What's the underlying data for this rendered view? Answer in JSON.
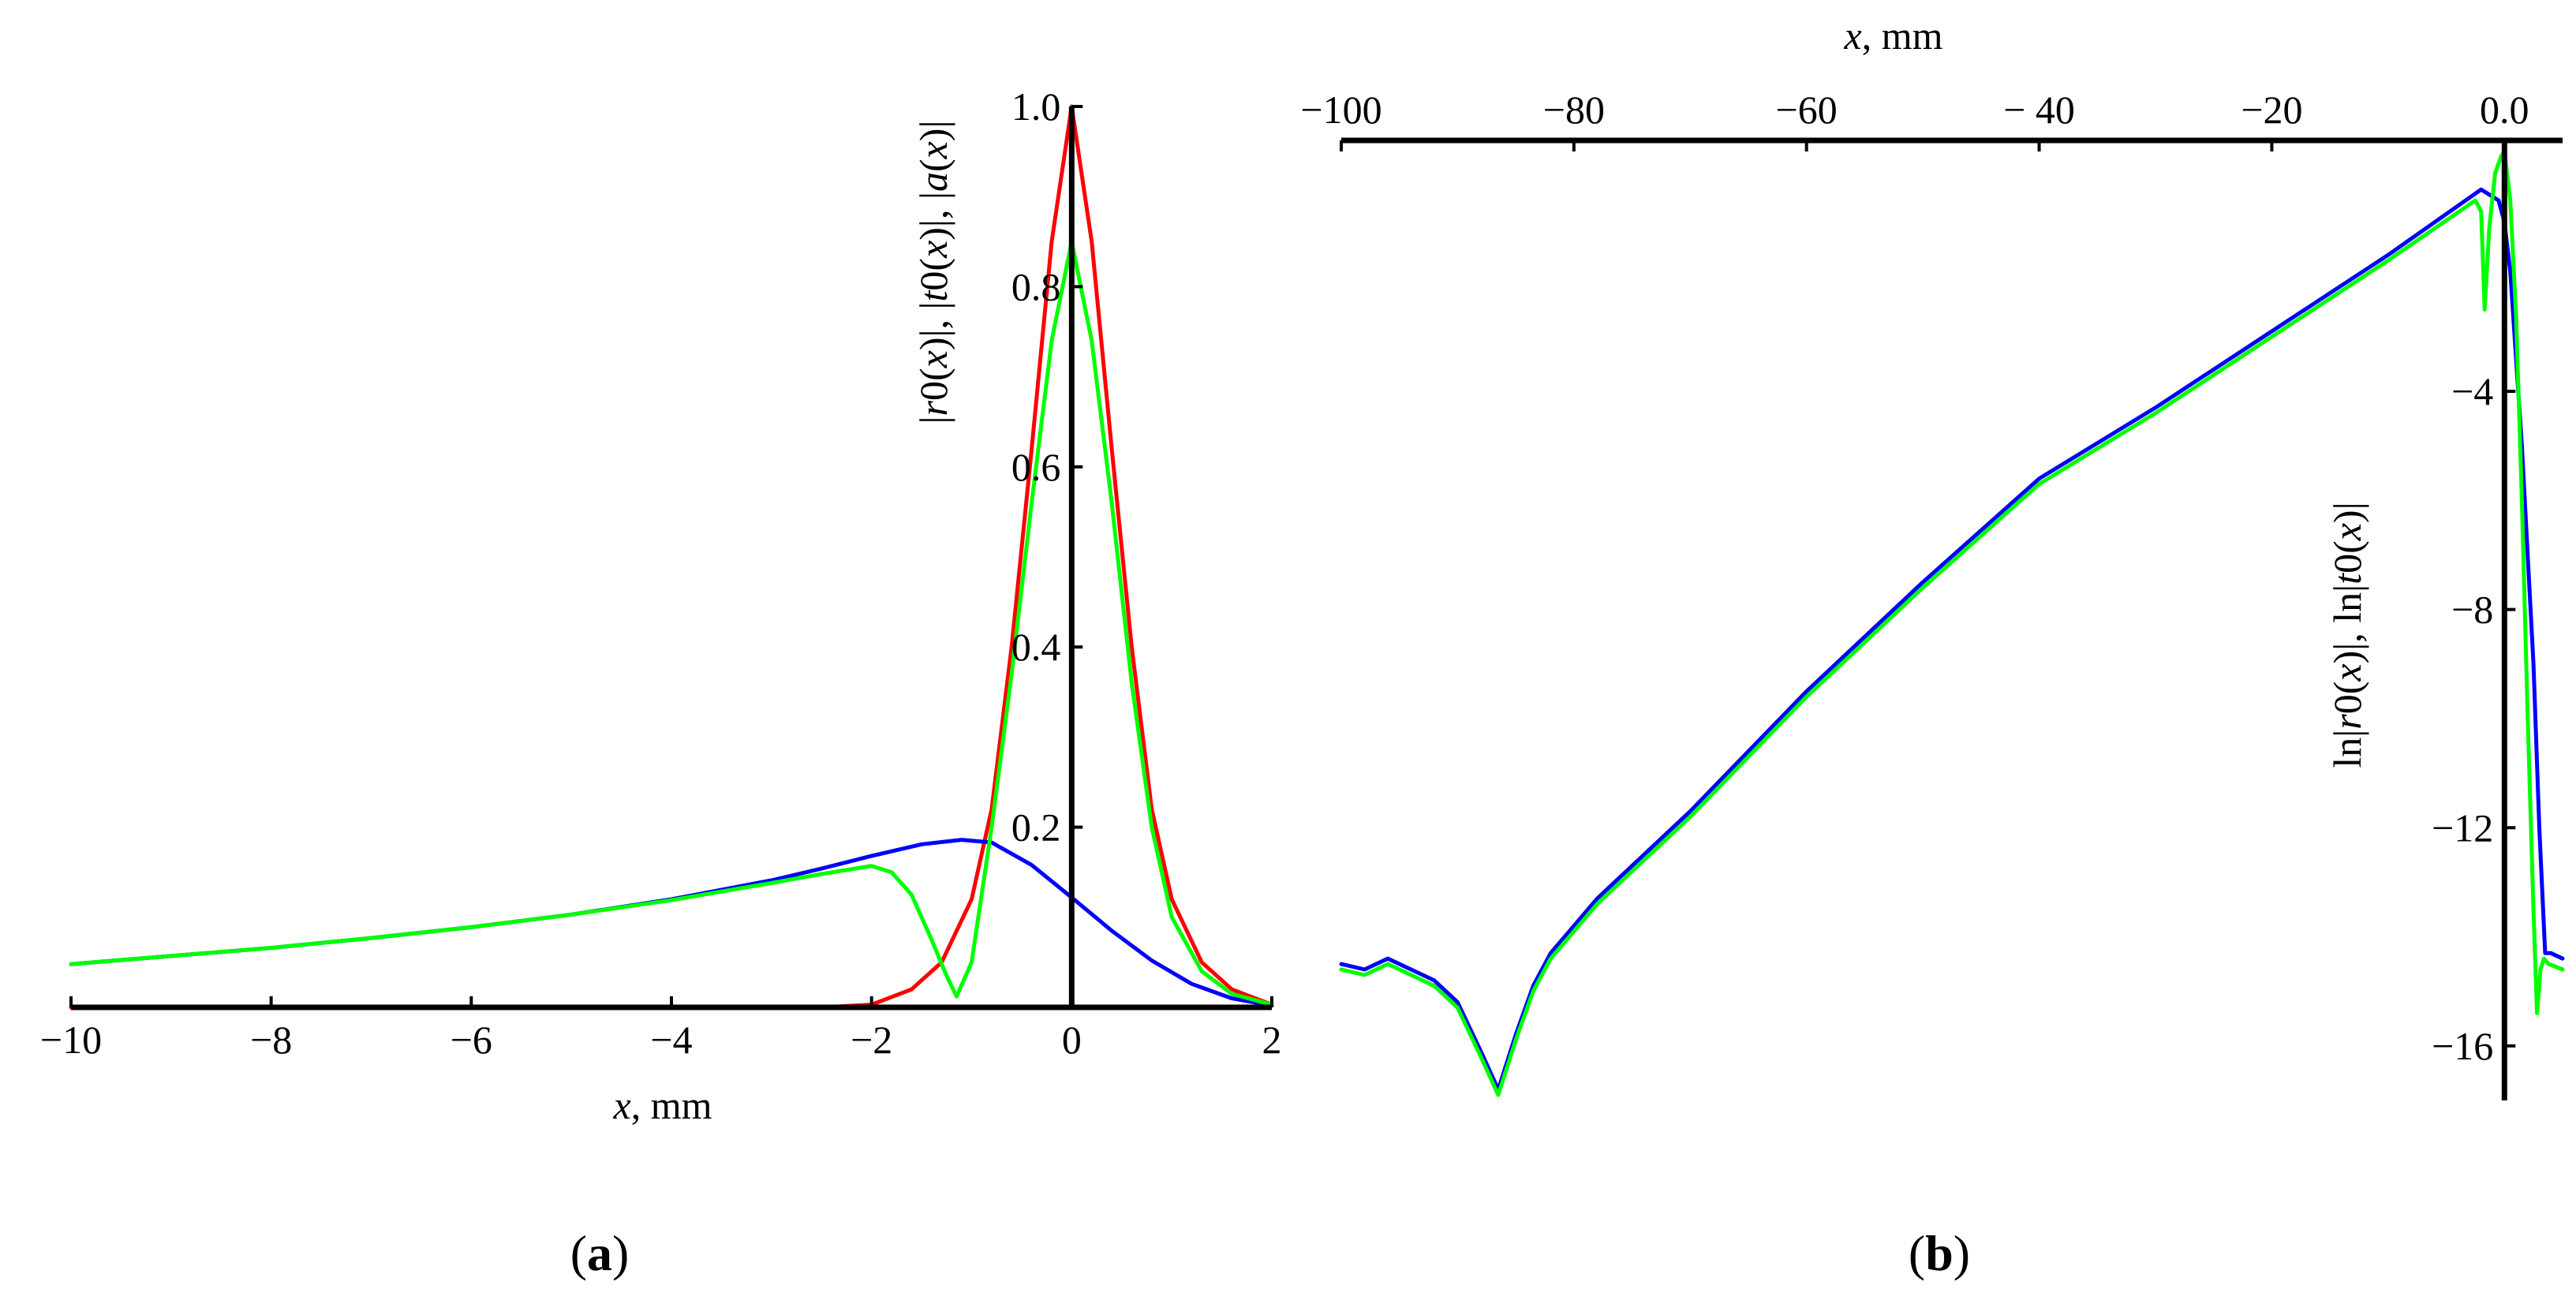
{
  "chart_data": [
    {
      "id": "a",
      "type": "line",
      "panel_label": "(a)",
      "panel_letter": "a",
      "title": "",
      "xlabel": "x, mm",
      "xlabel_var": "x",
      "xlabel_unit": ", mm",
      "ylabel": "|r0(x)|, |t0(x)|, |a(x)|",
      "ylabel_parts": [
        "|",
        "r",
        "0",
        "(",
        "x",
        ")|, |",
        "t",
        "0",
        "(",
        "x",
        ")|, |",
        "a",
        "(",
        "x",
        ")|"
      ],
      "xlim": [
        -10,
        2
      ],
      "ylim": [
        0,
        1.0
      ],
      "xticks": [
        -10,
        -8,
        -6,
        -4,
        -2,
        0,
        2
      ],
      "xtick_labels": [
        "−10",
        "−8",
        "−6",
        "−4",
        "−2",
        "0",
        "2"
      ],
      "yticks": [
        0.2,
        0.4,
        0.6,
        0.8,
        1.0
      ],
      "ytick_labels": [
        "0.2",
        "0.4",
        "0.6",
        "0.8",
        "1.0"
      ],
      "series": [
        {
          "name": "|a(x)|",
          "color": "#ff0000",
          "x": [
            -10,
            -2.5,
            -2,
            -1.6,
            -1.3,
            -1.0,
            -0.8,
            -0.6,
            -0.4,
            -0.2,
            0,
            0.2,
            0.4,
            0.6,
            0.8,
            1.0,
            1.3,
            1.6,
            2.0
          ],
          "y": [
            0,
            0,
            0.003,
            0.02,
            0.05,
            0.12,
            0.22,
            0.4,
            0.62,
            0.85,
            1.0,
            0.85,
            0.62,
            0.4,
            0.22,
            0.12,
            0.05,
            0.02,
            0.003
          ]
        },
        {
          "name": "|r0(x)|",
          "color": "#0000ff",
          "x": [
            -10,
            -9,
            -8,
            -7,
            -6,
            -5,
            -4,
            -3,
            -2.5,
            -2,
            -1.5,
            -1.1,
            -0.8,
            -0.4,
            0,
            0.4,
            0.8,
            1.2,
            1.6,
            2.0
          ],
          "y": [
            0.048,
            0.057,
            0.066,
            0.077,
            0.089,
            0.103,
            0.12,
            0.141,
            0.154,
            0.168,
            0.181,
            0.186,
            0.183,
            0.158,
            0.122,
            0.085,
            0.052,
            0.026,
            0.01,
            0.002
          ]
        },
        {
          "name": "|t0(x)|",
          "color": "#00ff00",
          "x": [
            -10,
            -9,
            -8,
            -7,
            -6,
            -5,
            -4,
            -3,
            -2.5,
            -2.0,
            -1.8,
            -1.6,
            -1.4,
            -1.25,
            -1.15,
            -1.0,
            -0.8,
            -0.6,
            -0.4,
            -0.2,
            0,
            0.2,
            0.4,
            0.6,
            0.8,
            1.0,
            1.3,
            1.6,
            2.0
          ],
          "y": [
            0.048,
            0.057,
            0.066,
            0.077,
            0.089,
            0.103,
            0.119,
            0.138,
            0.148,
            0.157,
            0.15,
            0.125,
            0.075,
            0.035,
            0.012,
            0.05,
            0.2,
            0.37,
            0.56,
            0.74,
            0.85,
            0.74,
            0.56,
            0.36,
            0.2,
            0.1,
            0.04,
            0.015,
            0.003
          ]
        }
      ]
    },
    {
      "id": "b",
      "type": "line",
      "panel_label": "(b)",
      "panel_letter": "b",
      "title": "",
      "xlabel": "x, mm",
      "xlabel_var": "x",
      "xlabel_unit": ", mm",
      "ylabel": "ln|r0(x)|, ln|t0(x)|",
      "ylabel_parts": [
        "ln|",
        "r",
        "0",
        "(",
        "x",
        ")|, ln|",
        "t",
        "0",
        "(",
        "x",
        ")|"
      ],
      "xlim": [
        -100,
        5
      ],
      "ylim": [
        -17,
        0.6
      ],
      "x_axis_position": "top",
      "xticks": [
        -100,
        -80,
        -60,
        -40,
        -20,
        0
      ],
      "xtick_labels": [
        "−100",
        "−80",
        "−60",
        "− 40",
        "−20",
        "0.0"
      ],
      "yticks": [
        -4,
        -8,
        -12,
        -16
      ],
      "ytick_labels": [
        "−4",
        "−8",
        "−12",
        "−16"
      ],
      "series": [
        {
          "name": "ln|r0(x)|",
          "color": "#0000ff",
          "x": [
            -100,
            -98,
            -96,
            -94,
            -92,
            -90,
            -88,
            -86.5,
            -85,
            -83.5,
            -82,
            -80,
            -78,
            -70,
            -60,
            -50,
            -40,
            -30,
            -20,
            -10,
            -2,
            -0.5,
            0,
            0.5,
            1.5,
            2.5,
            3,
            3.5,
            4,
            5
          ],
          "y": [
            -14.5,
            -14.6,
            -14.4,
            -14.6,
            -14.8,
            -15.2,
            -16.1,
            -16.8,
            -15.8,
            -14.9,
            -14.3,
            -13.8,
            -13.3,
            -11.7,
            -9.5,
            -7.5,
            -5.6,
            -4.3,
            -2.9,
            -1.5,
            -0.3,
            -0.5,
            -0.9,
            -1.8,
            -5.0,
            -9.0,
            -12.0,
            -14.3,
            -14.3,
            -14.4
          ]
        },
        {
          "name": "ln|t0(x)|",
          "color": "#00ff00",
          "x": [
            -100,
            -98,
            -96,
            -94,
            -92,
            -90,
            -88,
            -86.5,
            -85,
            -83.5,
            -82,
            -80,
            -78,
            -70,
            -60,
            -50,
            -40,
            -30,
            -20,
            -10,
            -2.5,
            -2,
            -1.7,
            -1.3,
            -0.8,
            -0.3,
            0,
            0.5,
            1.0,
            1.5,
            2.0,
            2.5,
            2.8,
            3.1,
            3.4,
            3.8,
            5
          ],
          "y": [
            -14.6,
            -14.7,
            -14.5,
            -14.7,
            -14.9,
            -15.3,
            -16.2,
            -16.9,
            -15.9,
            -15.0,
            -14.4,
            -13.9,
            -13.4,
            -11.8,
            -9.6,
            -7.6,
            -5.7,
            -4.4,
            -3.0,
            -1.6,
            -0.5,
            -0.7,
            -2.5,
            -1.0,
            0.0,
            0.3,
            0.4,
            -0.5,
            -2.6,
            -6.0,
            -10.0,
            -13.5,
            -15.4,
            -14.6,
            -14.4,
            -14.5,
            -14.6
          ]
        }
      ]
    }
  ]
}
